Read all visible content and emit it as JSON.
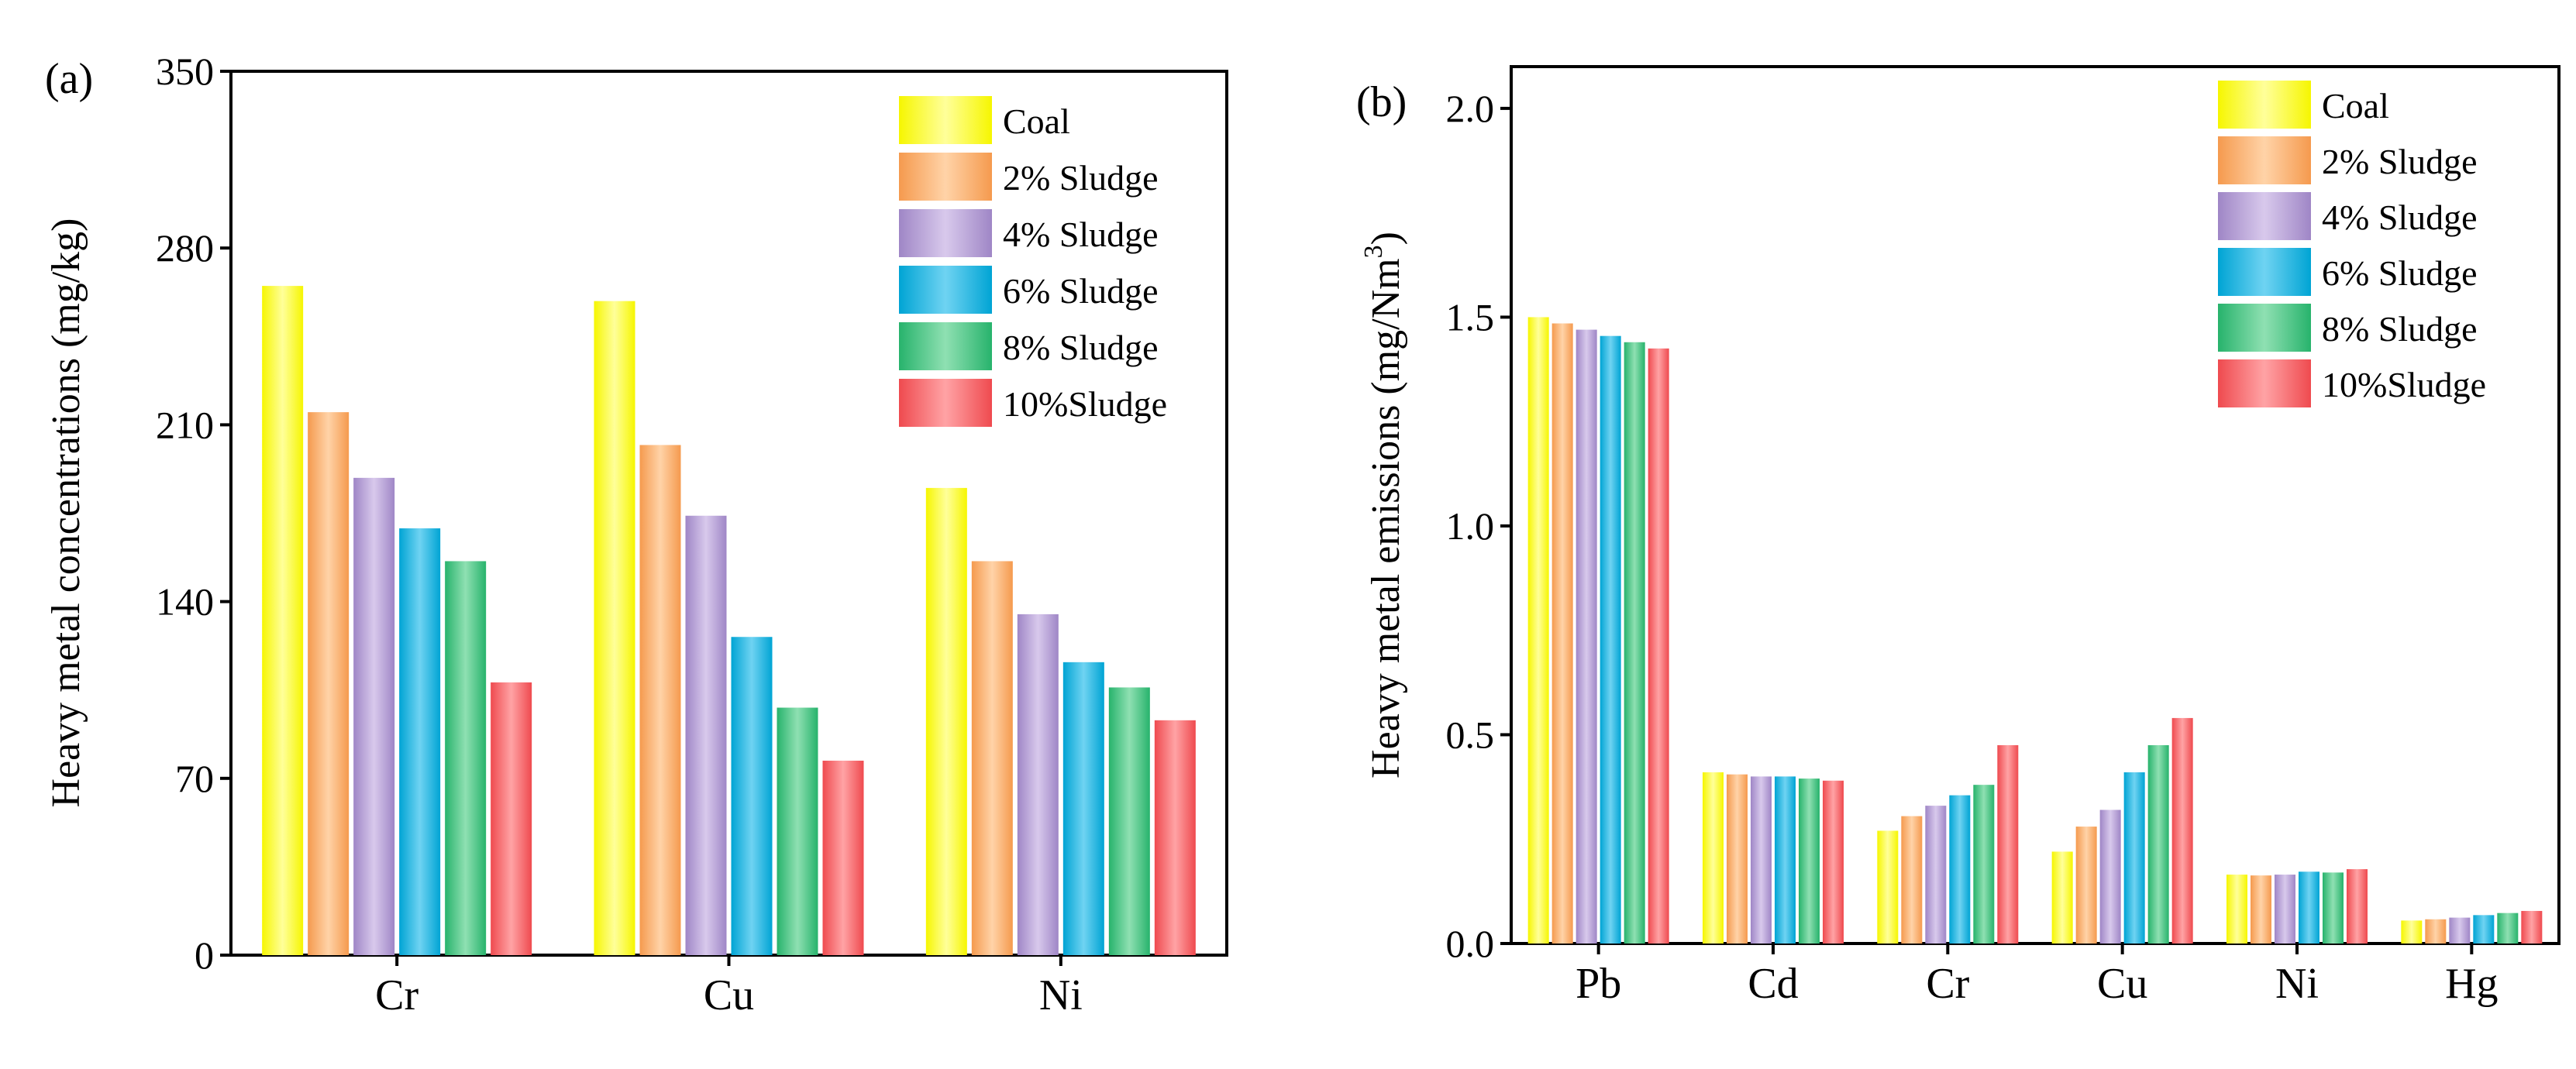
{
  "chart_data": [
    {
      "type": "bar",
      "panel": "(a)",
      "title": "",
      "xlabel": "",
      "ylabel": "Heavy metal concentrations (mg/kg)",
      "ylim": [
        0,
        350
      ],
      "yticks": [
        0,
        70,
        140,
        210,
        280,
        350
      ],
      "categories": [
        "Cr",
        "Cu",
        "Ni"
      ],
      "legend_position": "top-right",
      "series": [
        {
          "name": "Coal",
          "values": [
            265,
            259,
            185
          ]
        },
        {
          "name": "2% Sludge",
          "values": [
            215,
            202,
            156
          ]
        },
        {
          "name": "4% Sludge",
          "values": [
            189,
            174,
            135
          ]
        },
        {
          "name": "6% Sludge",
          "values": [
            169,
            126,
            116
          ]
        },
        {
          "name": "8% Sludge",
          "values": [
            156,
            98,
            106
          ]
        },
        {
          "name": "10%Sludge",
          "values": [
            108,
            77,
            93
          ]
        }
      ]
    },
    {
      "type": "bar",
      "panel": "(b)",
      "title": "",
      "xlabel": "",
      "ylabel": "Heavy metal emissions (mg/Nm",
      "ylabel_sup": "3",
      "ylabel_end": ")",
      "ylim": [
        0,
        2.1
      ],
      "yticks": [
        "0.0",
        "0.5",
        "1.0",
        "1.5",
        "2.0"
      ],
      "categories": [
        "Pb",
        "Cd",
        "Cr",
        "Cu",
        "Ni",
        "Hg"
      ],
      "legend_position": "top-right",
      "series": [
        {
          "name": "Coal",
          "values": [
            1.5,
            0.41,
            0.27,
            0.22,
            0.165,
            0.055
          ]
        },
        {
          "name": "2% Sludge",
          "values": [
            1.485,
            0.405,
            0.305,
            0.28,
            0.163,
            0.058
          ]
        },
        {
          "name": "4% Sludge",
          "values": [
            1.47,
            0.4,
            0.33,
            0.32,
            0.165,
            0.062
          ]
        },
        {
          "name": "6% Sludge",
          "values": [
            1.455,
            0.4,
            0.355,
            0.41,
            0.172,
            0.068
          ]
        },
        {
          "name": "8% Sludge",
          "values": [
            1.44,
            0.395,
            0.38,
            0.475,
            0.17,
            0.073
          ]
        },
        {
          "name": "10%Sludge",
          "values": [
            1.425,
            0.39,
            0.475,
            0.54,
            0.178,
            0.078
          ]
        }
      ]
    }
  ],
  "colors": {
    "series": [
      [
        "#f6f600",
        "#ffff9a"
      ],
      [
        "#f59a4e",
        "#ffd3a8"
      ],
      [
        "#9f86c6",
        "#d8c9ec"
      ],
      [
        "#00a4d4",
        "#6fd3f2"
      ],
      [
        "#27b36c",
        "#8fe0b2"
      ],
      [
        "#ef4a4f",
        "#ffa3a5"
      ]
    ]
  }
}
